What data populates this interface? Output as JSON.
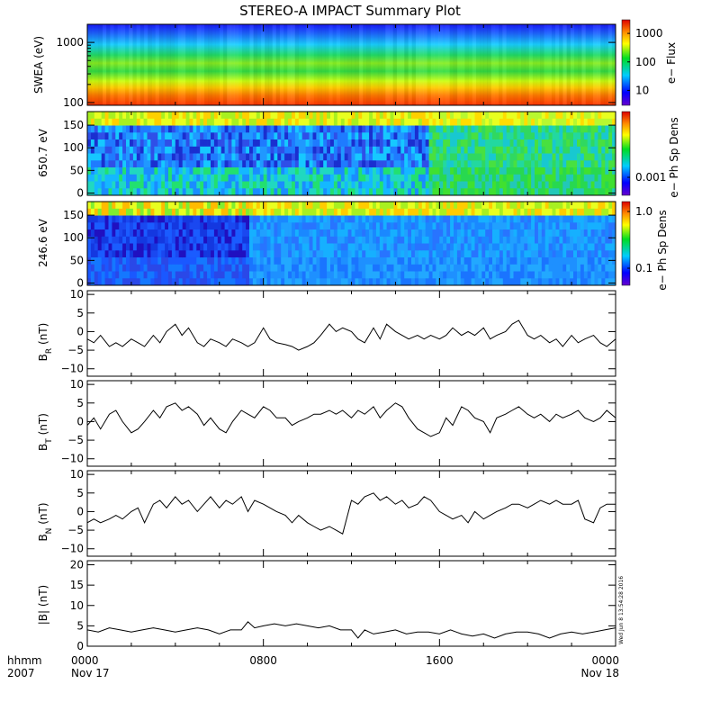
{
  "title": "STEREO-A IMPACT Summary Plot",
  "x_axis": {
    "left_labels": [
      "hhmm",
      "2007"
    ],
    "ticks": [
      {
        "hours": 0,
        "time": "0000",
        "date": "Nov 17"
      },
      {
        "hours": 8,
        "time": "0800",
        "date": ""
      },
      {
        "hours": 16,
        "time": "1600",
        "date": ""
      },
      {
        "hours": 24,
        "time": "0000",
        "date": "Nov 18"
      }
    ],
    "range_hours": [
      0,
      24
    ]
  },
  "timestamp": "Wed Jun  8 13:54:28 2016",
  "chart_data": [
    {
      "type": "heatmap",
      "panel": "swea",
      "ylabel": "SWEA (eV)",
      "yscale": "log",
      "ylim": [
        90,
        2000
      ],
      "yticks": [
        {
          "v": 100,
          "label": "100"
        },
        {
          "v": 1000,
          "label": "1000"
        }
      ],
      "colorbar": {
        "label": "e− Flux",
        "scale": "log",
        "range": [
          3,
          3000
        ],
        "ticks": [
          {
            "v": 10,
            "label": "10"
          },
          {
            "v": 100,
            "label": "100"
          },
          {
            "v": 1000,
            "label": "1000"
          }
        ]
      },
      "description": "electron flux vs energy and time; red at low energies, blue at high energies"
    },
    {
      "type": "heatmap",
      "panel": "pad650",
      "ylabel": "650.7 eV",
      "ylim": [
        -5,
        180
      ],
      "yticks": [
        {
          "v": 0,
          "label": "0"
        },
        {
          "v": 50,
          "label": "50"
        },
        {
          "v": 100,
          "label": "100"
        },
        {
          "v": 150,
          "label": "150"
        }
      ],
      "colorbar": {
        "label": "e− Ph Sp Dens",
        "scale": "log",
        "ticks": [
          {
            "v": 0.001,
            "label": "0.001"
          }
        ]
      }
    },
    {
      "type": "heatmap",
      "panel": "pad246",
      "ylabel": "246.6 eV",
      "ylim": [
        -5,
        180
      ],
      "yticks": [
        {
          "v": 0,
          "label": "0"
        },
        {
          "v": 50,
          "label": "50"
        },
        {
          "v": 100,
          "label": "100"
        },
        {
          "v": 150,
          "label": "150"
        }
      ],
      "colorbar": {
        "label": "e− Ph Sp Dens",
        "scale": "log",
        "ticks": [
          {
            "v": 1.0,
            "label": "1.0"
          },
          {
            "v": 0.1,
            "label": "0.1"
          }
        ]
      }
    },
    {
      "type": "line",
      "panel": "br",
      "ylabel_main": "B",
      "ylabel_sub": "R",
      "ylabel_unit": "(nT)",
      "ylim": [
        -12,
        11
      ],
      "yticks": [
        {
          "v": 10,
          "label": "10"
        },
        {
          "v": 5,
          "label": "5"
        },
        {
          "v": 0,
          "label": "0"
        },
        {
          "v": -5,
          "label": "−5"
        },
        {
          "v": -10,
          "label": "−10"
        }
      ],
      "x": [
        0,
        0.3,
        0.6,
        1,
        1.3,
        1.6,
        2,
        2.3,
        2.6,
        3,
        3.3,
        3.6,
        4,
        4.3,
        4.6,
        5,
        5.3,
        5.6,
        6,
        6.3,
        6.6,
        7,
        7.3,
        7.6,
        8,
        8.3,
        8.6,
        9,
        9.3,
        9.6,
        10,
        10.3,
        10.6,
        11,
        11.3,
        11.6,
        12,
        12.3,
        12.6,
        13,
        13.3,
        13.6,
        14,
        14.3,
        14.6,
        15,
        15.3,
        15.6,
        16,
        16.3,
        16.6,
        17,
        17.3,
        17.6,
        18,
        18.3,
        18.6,
        19,
        19.3,
        19.6,
        20,
        20.3,
        20.6,
        21,
        21.3,
        21.6,
        22,
        22.3,
        22.6,
        23,
        23.3,
        23.6,
        24
      ],
      "y": [
        -2,
        -3,
        -1,
        -4,
        -3,
        -4,
        -2,
        -3,
        -4,
        -1,
        -3,
        0,
        2,
        -1,
        1,
        -3,
        -4,
        -2,
        -3,
        -4,
        -2,
        -3,
        -4,
        -3,
        1,
        -2,
        -3,
        -3.5,
        -4,
        -5,
        -4,
        -3,
        -1,
        2,
        0,
        1,
        0,
        -2,
        -3,
        1,
        -2,
        2,
        0,
        -1,
        -2,
        -1,
        -2,
        -1,
        -2,
        -1,
        1,
        -1,
        0,
        -1,
        1,
        -2,
        -1,
        0,
        2,
        3,
        -1,
        -2,
        -1,
        -3,
        -2,
        -4,
        -1,
        -3,
        -2,
        -1,
        -3,
        -4,
        -2
      ]
    },
    {
      "type": "line",
      "panel": "bt",
      "ylabel_main": "B",
      "ylabel_sub": "T",
      "ylabel_unit": "(nT)",
      "ylim": [
        -12,
        11
      ],
      "yticks": [
        {
          "v": 10,
          "label": "10"
        },
        {
          "v": 5,
          "label": "5"
        },
        {
          "v": 0,
          "label": "0"
        },
        {
          "v": -5,
          "label": "−5"
        },
        {
          "v": -10,
          "label": "−10"
        }
      ],
      "x": [
        0,
        0.3,
        0.6,
        1,
        1.3,
        1.6,
        2,
        2.3,
        2.6,
        3,
        3.3,
        3.6,
        4,
        4.3,
        4.6,
        5,
        5.3,
        5.6,
        6,
        6.3,
        6.6,
        7,
        7.3,
        7.6,
        8,
        8.3,
        8.6,
        9,
        9.3,
        9.6,
        10,
        10.3,
        10.6,
        11,
        11.3,
        11.6,
        12,
        12.3,
        12.6,
        13,
        13.3,
        13.6,
        14,
        14.3,
        14.6,
        15,
        15.3,
        15.6,
        16,
        16.3,
        16.6,
        17,
        17.3,
        17.6,
        18,
        18.3,
        18.6,
        19,
        19.3,
        19.6,
        20,
        20.3,
        20.6,
        21,
        21.3,
        21.6,
        22,
        22.3,
        22.6,
        23,
        23.3,
        23.6,
        24
      ],
      "y": [
        -1,
        1,
        -2,
        2,
        3,
        0,
        -3,
        -2,
        0,
        3,
        1,
        4,
        5,
        3,
        4,
        2,
        -1,
        1,
        -2,
        -3,
        0,
        3,
        2,
        1,
        4,
        3,
        1,
        1,
        -1,
        0,
        1,
        2,
        2,
        3,
        2,
        3,
        1,
        3,
        2,
        4,
        1,
        3,
        5,
        4,
        1,
        -2,
        -3,
        -4,
        -3,
        1,
        -1,
        4,
        3,
        1,
        0,
        -3,
        1,
        2,
        3,
        4,
        2,
        1,
        2,
        0,
        2,
        1,
        2,
        3,
        1,
        0,
        1,
        3,
        1
      ]
    },
    {
      "type": "line",
      "panel": "bn",
      "ylabel_main": "B",
      "ylabel_sub": "N",
      "ylabel_unit": "(nT)",
      "ylim": [
        -12,
        11
      ],
      "yticks": [
        {
          "v": 10,
          "label": "10"
        },
        {
          "v": 5,
          "label": "5"
        },
        {
          "v": 0,
          "label": "0"
        },
        {
          "v": -5,
          "label": "−5"
        },
        {
          "v": -10,
          "label": "−10"
        }
      ],
      "x": [
        0,
        0.3,
        0.6,
        1,
        1.3,
        1.6,
        2,
        2.3,
        2.6,
        3,
        3.3,
        3.6,
        4,
        4.3,
        4.6,
        5,
        5.3,
        5.6,
        6,
        6.3,
        6.6,
        7,
        7.3,
        7.6,
        8,
        8.3,
        8.6,
        9,
        9.3,
        9.6,
        10,
        10.3,
        10.6,
        11,
        11.3,
        11.6,
        12,
        12.3,
        12.6,
        13,
        13.3,
        13.6,
        14,
        14.3,
        14.6,
        15,
        15.3,
        15.6,
        16,
        16.3,
        16.6,
        17,
        17.3,
        17.6,
        18,
        18.3,
        18.6,
        19,
        19.3,
        19.6,
        20,
        20.3,
        20.6,
        21,
        21.3,
        21.6,
        22,
        22.3,
        22.6,
        23,
        23.3,
        23.6,
        24
      ],
      "y": [
        -3,
        -2,
        -3,
        -2,
        -1,
        -2,
        0,
        1,
        -3,
        2,
        3,
        1,
        4,
        2,
        3,
        0,
        2,
        4,
        1,
        3,
        2,
        4,
        0,
        3,
        2,
        1,
        0,
        -1,
        -3,
        -1,
        -3,
        -4,
        -5,
        -4,
        -5,
        -6,
        3,
        2,
        4,
        5,
        3,
        4,
        2,
        3,
        1,
        2,
        4,
        3,
        0,
        -1,
        -2,
        -1,
        -3,
        0,
        -2,
        -1,
        0,
        1,
        2,
        2,
        1,
        2,
        3,
        2,
        3,
        2,
        2,
        3,
        -2,
        -3,
        1,
        2,
        2
      ]
    },
    {
      "type": "line",
      "panel": "bmag",
      "ylabel_main": "|B|",
      "ylabel_unit": "(nT)",
      "ylim": [
        0,
        21
      ],
      "yticks": [
        {
          "v": 20,
          "label": "20"
        },
        {
          "v": 15,
          "label": "15"
        },
        {
          "v": 10,
          "label": "10"
        },
        {
          "v": 5,
          "label": "5"
        },
        {
          "v": 0,
          "label": "0"
        }
      ],
      "x": [
        0,
        0.5,
        1,
        1.5,
        2,
        2.5,
        3,
        3.5,
        4,
        4.5,
        5,
        5.5,
        6,
        6.5,
        7,
        7.3,
        7.6,
        8,
        8.5,
        9,
        9.5,
        10,
        10.5,
        11,
        11.5,
        12,
        12.3,
        12.6,
        13,
        13.5,
        14,
        14.5,
        15,
        15.5,
        16,
        16.5,
        17,
        17.5,
        18,
        18.5,
        19,
        19.5,
        20,
        20.5,
        21,
        21.5,
        22,
        22.5,
        23,
        23.5,
        24
      ],
      "y": [
        4,
        3.5,
        4.5,
        4,
        3.5,
        4,
        4.5,
        4,
        3.5,
        4,
        4.5,
        4,
        3,
        4,
        4,
        6,
        4.5,
        5,
        5.5,
        5,
        5.5,
        5,
        4.5,
        5,
        4,
        4,
        2,
        4,
        3,
        3.5,
        4,
        3,
        3.5,
        3.5,
        3,
        4,
        3,
        2.5,
        3,
        2,
        3,
        3.5,
        3.5,
        3,
        2,
        3,
        3.5,
        3,
        3.5,
        4,
        4.5
      ]
    }
  ]
}
